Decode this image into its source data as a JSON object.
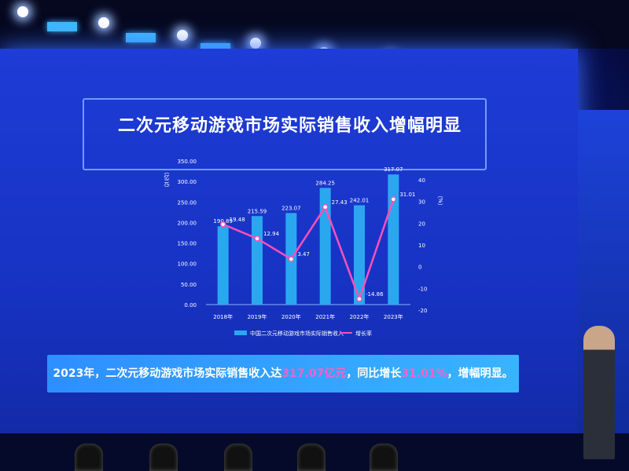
{
  "slide": {
    "title": "二次元移动游戏市场实际销售收入增幅明显",
    "callout": {
      "prefix": "2023年，二次元移动游戏市场实际销售收入达",
      "value1": "317.07亿元",
      "middle": "，同比增长",
      "value2": "31.01%",
      "suffix": "，增幅明显。"
    }
  },
  "colors": {
    "bar": "#29a8f0",
    "line": "#ff4fb8",
    "background": "#1a36c8",
    "callout": "#33a2ff"
  },
  "chart_data": {
    "type": "bar",
    "categories": [
      "2018年",
      "2019年",
      "2020年",
      "2021年",
      "2022年",
      "2023年"
    ],
    "series": [
      {
        "name": "中国二次元移动游戏市场实际销售收入",
        "type": "bar",
        "axis": "left",
        "values": [
          190.89,
          215.59,
          223.07,
          284.25,
          242.01,
          317.07
        ],
        "labels": [
          "190.89",
          "215.59",
          "223.07",
          "284.25",
          "242.01",
          "317.07"
        ]
      },
      {
        "name": "增长率",
        "type": "line",
        "axis": "right",
        "values": [
          19.48,
          12.94,
          3.47,
          27.43,
          -14.86,
          31.01
        ],
        "labels": [
          "19.48",
          "12.94",
          "3.47",
          "27.43",
          "-14.86",
          "31.01"
        ]
      }
    ],
    "ylabel": "（亿元）",
    "y2label": "（%）",
    "ylim": [
      0,
      350
    ],
    "yticks": [
      "0.00",
      "50.00",
      "100.00",
      "150.00",
      "200.00",
      "250.00",
      "300.00",
      "350.00"
    ],
    "y2lim": [
      -20,
      40
    ],
    "y2ticks": [
      "-20",
      "-10",
      "0",
      "10",
      "20",
      "30",
      "40"
    ],
    "legend": "bottom",
    "grid": false
  }
}
